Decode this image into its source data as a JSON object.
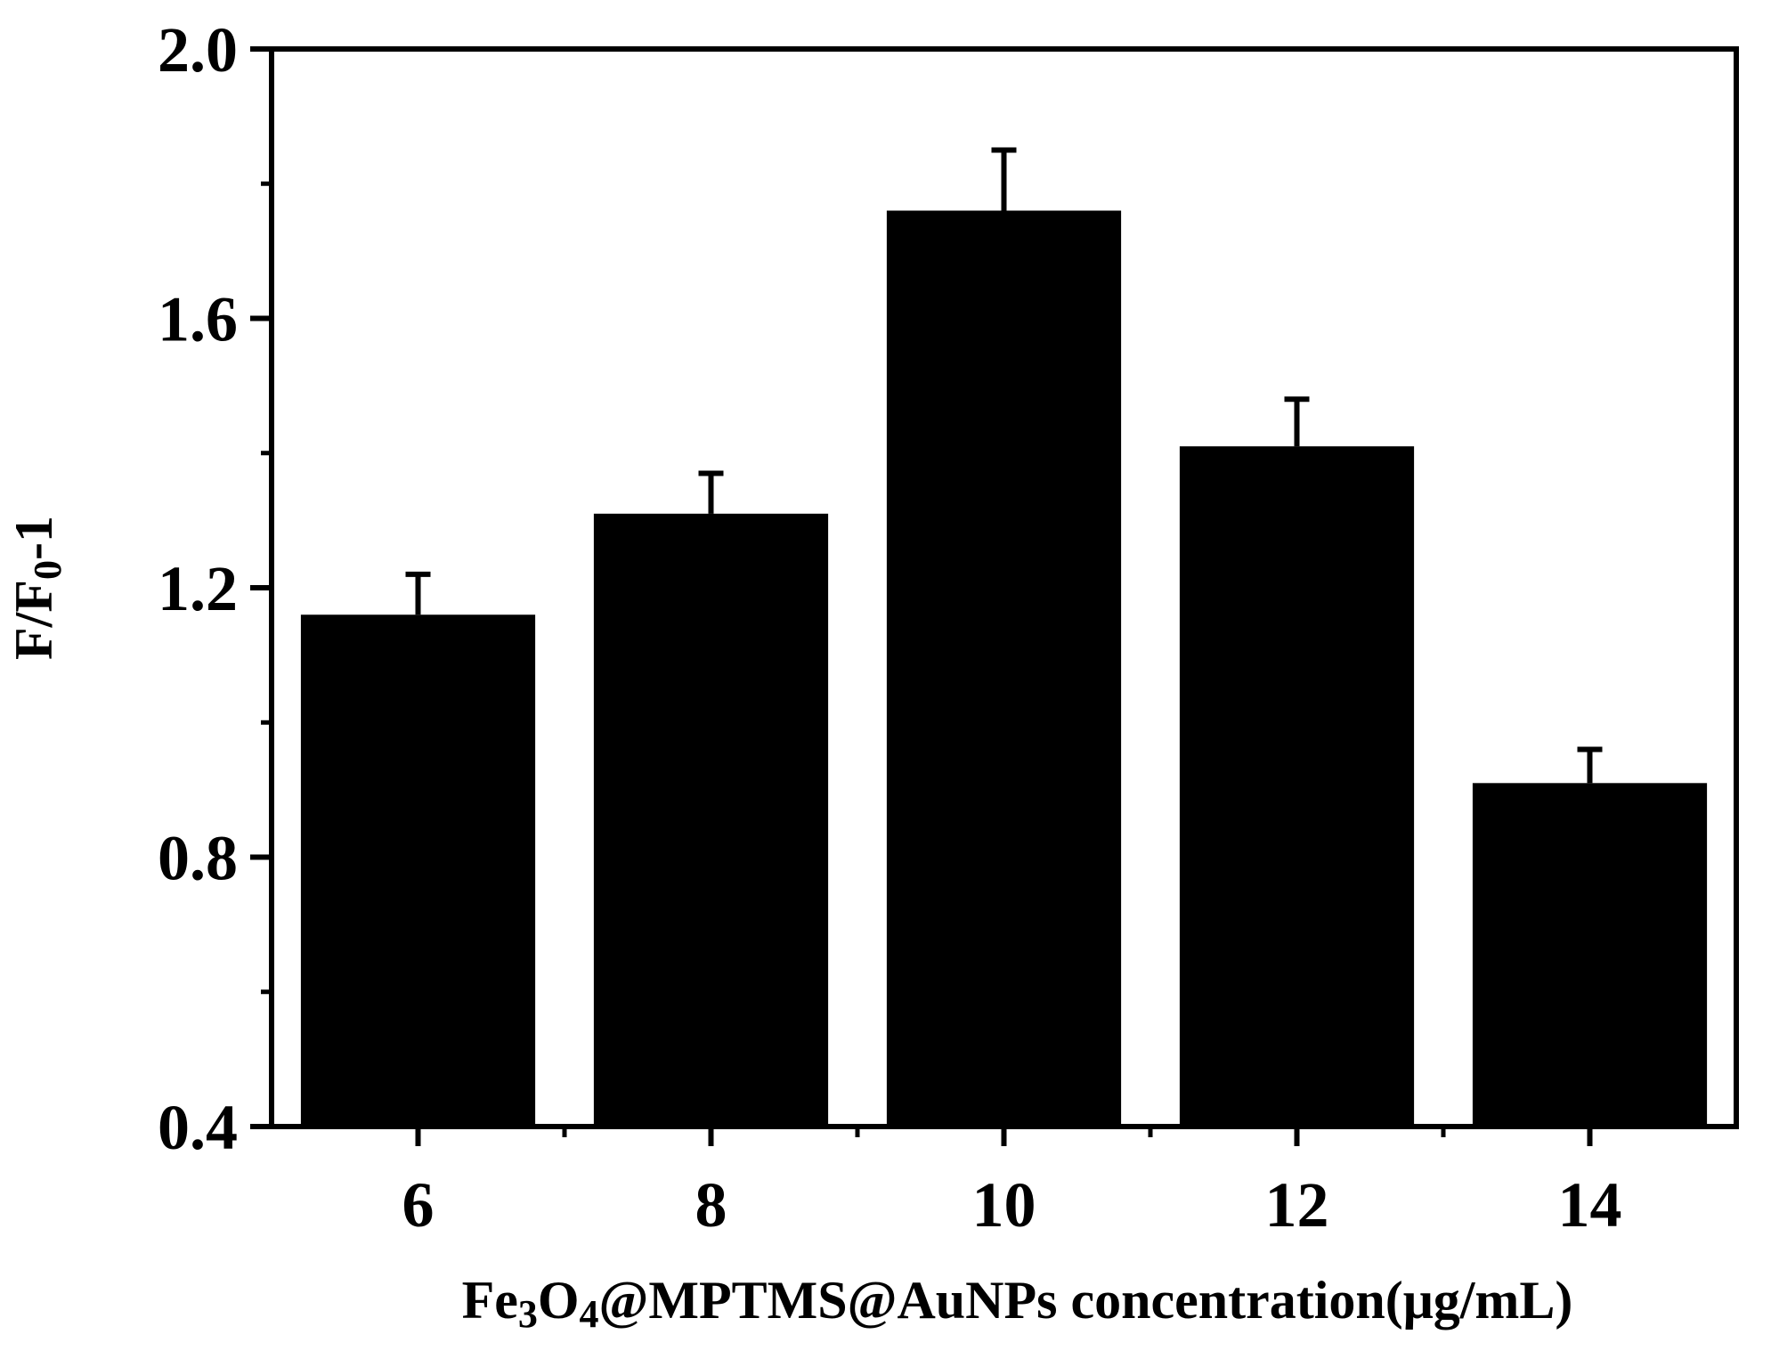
{
  "chart_data": {
    "type": "bar",
    "title": "",
    "xlabel_parts": [
      {
        "text": "Fe",
        "sub": false
      },
      {
        "text": "3",
        "sub": true
      },
      {
        "text": "O",
        "sub": false
      },
      {
        "text": "4",
        "sub": true
      },
      {
        "text": "@MPTMS@AuNPs concentration(μg/mL)",
        "sub": false
      }
    ],
    "ylabel_parts": [
      {
        "text": "F/F",
        "sub": false
      },
      {
        "text": "0",
        "sub": true
      },
      {
        "text": "-1",
        "sub": false
      }
    ],
    "categories": [
      "6",
      "8",
      "10",
      "12",
      "14"
    ],
    "values": [
      1.16,
      1.31,
      1.76,
      1.41,
      0.91
    ],
    "errors": [
      0.06,
      0.06,
      0.09,
      0.07,
      0.05
    ],
    "ylim": [
      0.4,
      2.0
    ],
    "yticks": [
      "0.4",
      "0.8",
      "1.2",
      "1.6",
      "2.0"
    ],
    "y_minor_step": 0.2,
    "bar_color": "#000000",
    "grid": false,
    "legend": "none"
  }
}
